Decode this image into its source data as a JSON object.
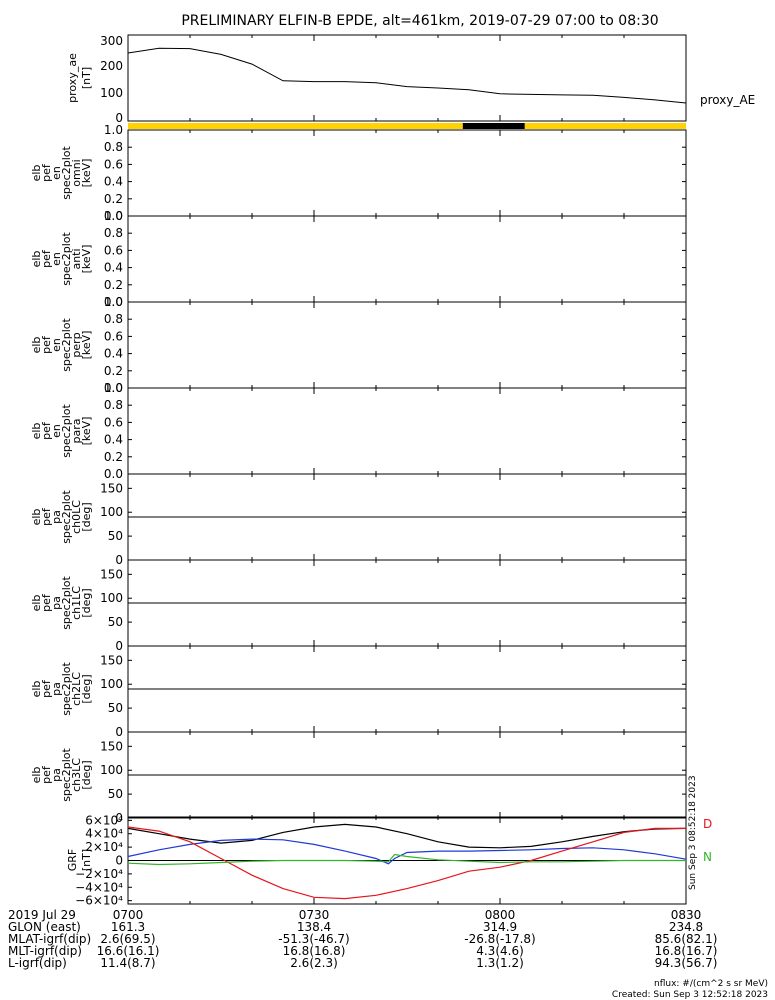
{
  "title": "PRELIMINARY ELFIN-B EPDE, alt=461km, 2019-07-29 07:00 to 08:30",
  "top_panel": {
    "ylabel_lines": [
      "proxy_ae",
      "[nT]"
    ],
    "yticks": [
      "300",
      "200",
      "100",
      "0"
    ],
    "legend": "proxy_AE"
  },
  "spectra_panels": [
    {
      "ylabel_lines": [
        "elb",
        "pef",
        "en",
        "spec2plot",
        "omni",
        "[keV]"
      ],
      "yticks": [
        "1.0",
        "0.8",
        "0.6",
        "0.4",
        "0.2",
        "0.0"
      ]
    },
    {
      "ylabel_lines": [
        "elb",
        "pef",
        "en",
        "spec2plot",
        "anti",
        "[keV]"
      ],
      "yticks": [
        "1.0",
        "0.8",
        "0.6",
        "0.4",
        "0.2",
        "0.0"
      ]
    },
    {
      "ylabel_lines": [
        "elb",
        "pef",
        "en",
        "spec2plot",
        "perp",
        "[keV]"
      ],
      "yticks": [
        "1.0",
        "0.8",
        "0.6",
        "0.4",
        "0.2",
        "0.0"
      ]
    },
    {
      "ylabel_lines": [
        "elb",
        "pef",
        "en",
        "spec2plot",
        "para",
        "[keV]"
      ],
      "yticks": [
        "1.0",
        "0.8",
        "0.6",
        "0.4",
        "0.2",
        "0.0"
      ]
    },
    {
      "ylabel_lines": [
        "elb",
        "pef",
        "pa",
        "spec2plot",
        "ch0LC",
        "[deg]"
      ],
      "yticks": [
        "150",
        "100",
        "50",
        "0"
      ]
    },
    {
      "ylabel_lines": [
        "elb",
        "pef",
        "pa",
        "spec2plot",
        "ch1LC",
        "[deg]"
      ],
      "yticks": [
        "150",
        "100",
        "50",
        "0"
      ]
    },
    {
      "ylabel_lines": [
        "elb",
        "pef",
        "pa",
        "spec2plot",
        "ch2LC",
        "[deg]"
      ],
      "yticks": [
        "150",
        "100",
        "50",
        "0"
      ]
    },
    {
      "ylabel_lines": [
        "elb",
        "pef",
        "pa",
        "spec2plot",
        "ch3LC",
        "[deg]"
      ],
      "yticks": [
        "150",
        "100",
        "50",
        "0"
      ]
    }
  ],
  "grf_panel": {
    "ylabel_lines": [
      "GRF",
      "[nT]"
    ],
    "yticks": [
      "6×10⁴",
      "4×10⁴",
      "2×10⁴",
      "0",
      "−2×10⁴",
      "−4×10⁴",
      "−6×10⁴"
    ],
    "legend": {
      "D": "D",
      "N": "N"
    },
    "side_stamp": "Sun Sep  3 08:52:18 2023"
  },
  "footer": {
    "rows": [
      {
        "label": "2019 Jul 29",
        "values": [
          "0700",
          "0730",
          "0800",
          "0830"
        ]
      },
      {
        "label": "GLON (east)",
        "values": [
          "161.3",
          "138.4",
          "314.9",
          "234.8"
        ]
      },
      {
        "label": "MLAT-igrf(dip)",
        "values": [
          "2.6(69.5)",
          "-51.3(-46.7)",
          "-26.8(-17.8)",
          "85.6(82.1)"
        ]
      },
      {
        "label": "MLT-igrf(dip)",
        "values": [
          "16.6(16.1)",
          "16.8(16.8)",
          "4.3(4.6)",
          "16.8(16.7)"
        ]
      },
      {
        "label": "L-igrf(dip)",
        "values": [
          "11.4(8.7)",
          "2.6(2.3)",
          "1.3(1.2)",
          "94.3(56.7)"
        ]
      }
    ],
    "nflux": "nflux: #/(cm^2 s sr MeV)",
    "created": "Created: Sun Sep  3 12:52:18 2023"
  },
  "colors": {
    "axis": "#000000",
    "bar_day": "#ffd200",
    "bar_night": "#000000",
    "grf_red": "#e8141c",
    "grf_blue": "#1f3ad6",
    "grf_green": "#33b52a",
    "grf_black": "#000000"
  },
  "chart_data": [
    {
      "type": "line",
      "title": "PRELIMINARY ELFIN-B EPDE, alt=461km, 2019-07-29 07:00 to 08:30",
      "ylabel": "proxy_ae [nT]",
      "ylim": [
        0,
        310
      ],
      "xlim": [
        "07:00",
        "08:30"
      ],
      "series": [
        {
          "name": "proxy_AE",
          "x": [
            "07:00",
            "07:05",
            "07:10",
            "07:15",
            "07:20",
            "07:25",
            "07:30",
            "07:35",
            "07:40",
            "07:45",
            "07:50",
            "07:55",
            "08:00",
            "08:05",
            "08:10",
            "08:15",
            "08:20",
            "08:25",
            "08:30"
          ],
          "values": [
            245,
            262,
            261,
            240,
            205,
            145,
            142,
            142,
            138,
            124,
            119,
            113,
            98,
            96,
            94,
            93,
            85,
            76,
            65
          ]
        }
      ]
    },
    {
      "type": "area",
      "ylabel": "",
      "series": [
        {
          "name": "",
          "segments": [
            {
              "start": "07:00",
              "end": "07:54",
              "color": "#ffd200"
            },
            {
              "start": "07:54",
              "end": "08:04",
              "color": "#000000"
            },
            {
              "start": "08:04",
              "end": "08:30",
              "color": "#ffd200"
            }
          ]
        }
      ]
    },
    {
      "type": "line",
      "ylabel": "GRF [nT]",
      "ylim": [
        -65000,
        65000
      ],
      "xlim": [
        "07:00",
        "08:30"
      ],
      "series": [
        {
          "name": "",
          "color": "#000000",
          "x": [
            "07:00",
            "07:05",
            "07:10",
            "07:15",
            "07:20",
            "07:25",
            "07:30",
            "07:35",
            "07:40",
            "07:45",
            "07:50",
            "07:55",
            "08:00",
            "08:05",
            "08:10",
            "08:15",
            "08:20",
            "08:25",
            "08:30"
          ],
          "values": [
            48000,
            40000,
            32000,
            26000,
            30000,
            42000,
            50000,
            54000,
            50000,
            40000,
            28000,
            20000,
            19000,
            21000,
            28000,
            36000,
            43000,
            47000,
            48000
          ]
        },
        {
          "name": "",
          "color": "#1f3ad6",
          "x": [
            "07:00",
            "07:05",
            "07:10",
            "07:15",
            "07:20",
            "07:25",
            "07:30",
            "07:35",
            "07:40",
            "07:42",
            "07:43",
            "07:45",
            "07:50",
            "07:55",
            "08:00",
            "08:05",
            "08:10",
            "08:15",
            "08:20",
            "08:25",
            "08:30"
          ],
          "values": [
            6000,
            16000,
            24000,
            30000,
            32000,
            31000,
            24000,
            14000,
            3000,
            -5000,
            3000,
            12000,
            14000,
            14000,
            15000,
            16000,
            18000,
            19000,
            16000,
            10000,
            2000
          ]
        },
        {
          "name": "",
          "color": "#e8141c",
          "x": [
            "07:00",
            "07:05",
            "07:10",
            "07:15",
            "07:20",
            "07:25",
            "07:30",
            "07:35",
            "07:40",
            "07:45",
            "07:50",
            "07:55",
            "08:00",
            "08:05",
            "08:10",
            "08:15",
            "08:20",
            "08:25",
            "08:30"
          ],
          "values": [
            50000,
            44000,
            28000,
            3000,
            -22000,
            -42000,
            -55000,
            -57000,
            -52000,
            -42000,
            -30000,
            -16000,
            -10000,
            0,
            14000,
            28000,
            42000,
            48000,
            48000
          ]
        },
        {
          "name": "",
          "color": "#33b52a",
          "x": [
            "07:00",
            "07:05",
            "07:10",
            "07:15",
            "07:20",
            "07:25",
            "07:30",
            "07:35",
            "07:40",
            "07:42",
            "07:43",
            "07:45",
            "07:50",
            "07:55",
            "08:00",
            "08:05",
            "08:10",
            "08:15",
            "08:20",
            "08:25",
            "08:30"
          ],
          "values": [
            -4000,
            -6000,
            -5000,
            -3000,
            -1000,
            0,
            0,
            0,
            -1000,
            -2000,
            9000,
            6000,
            1000,
            -1000,
            -3000,
            -2000,
            -2000,
            -1000,
            0,
            0,
            0
          ]
        }
      ]
    }
  ]
}
